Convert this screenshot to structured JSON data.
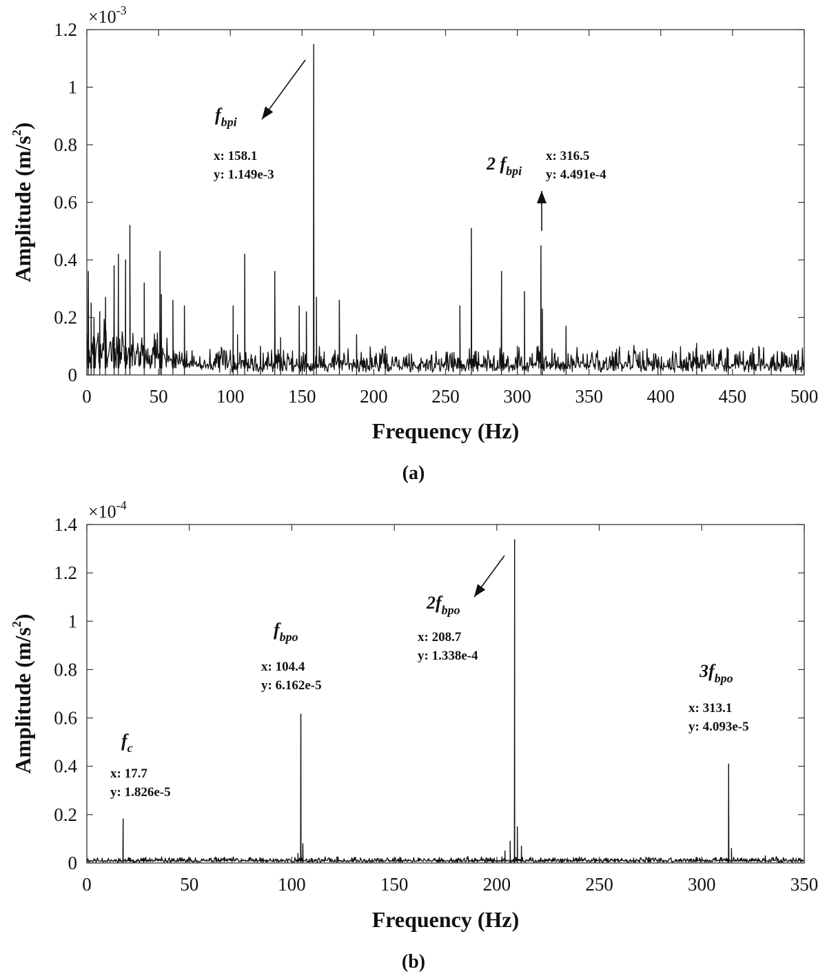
{
  "chart_data": [
    {
      "panel": "(a)",
      "type": "line",
      "xlabel": "Frequency (Hz)",
      "ylabel": "Amplitude (m/s^2)",
      "ylabel_parts": {
        "main": "Amplitude (m/s",
        "sup": "2",
        "close": ")"
      },
      "y_multiplier": {
        "base": "×10",
        "exp": "-3"
      },
      "xlim": [
        0,
        500
      ],
      "ylim": [
        0,
        1.2
      ],
      "xticks": [
        0,
        50,
        100,
        150,
        200,
        250,
        300,
        350,
        400,
        450,
        500
      ],
      "yticks": [
        0,
        0.2,
        0.4,
        0.6,
        0.8,
        1,
        1.2
      ],
      "ytick_labels": [
        "0",
        "0.2",
        "0.4",
        "0.6",
        "0.8",
        "1",
        "1.2"
      ],
      "line_color": "#111111",
      "grid": false,
      "noise": {
        "base": 0.03,
        "spread": 0.035,
        "low_freq_boost": 0.12,
        "low_freq_cutoff": 70,
        "n": 1200
      },
      "peaks": [
        {
          "x": 1,
          "y": 0.36
        },
        {
          "x": 3,
          "y": 0.25
        },
        {
          "x": 5,
          "y": 0.2
        },
        {
          "x": 9,
          "y": 0.22
        },
        {
          "x": 13,
          "y": 0.27
        },
        {
          "x": 19,
          "y": 0.38
        },
        {
          "x": 22,
          "y": 0.42
        },
        {
          "x": 27,
          "y": 0.4
        },
        {
          "x": 30,
          "y": 0.52
        },
        {
          "x": 40,
          "y": 0.32
        },
        {
          "x": 51,
          "y": 0.43
        },
        {
          "x": 52,
          "y": 0.28
        },
        {
          "x": 60,
          "y": 0.26
        },
        {
          "x": 68,
          "y": 0.24
        },
        {
          "x": 102,
          "y": 0.24
        },
        {
          "x": 105,
          "y": 0.14
        },
        {
          "x": 110,
          "y": 0.42
        },
        {
          "x": 121,
          "y": 0.1
        },
        {
          "x": 131,
          "y": 0.36
        },
        {
          "x": 135,
          "y": 0.13
        },
        {
          "x": 148,
          "y": 0.24
        },
        {
          "x": 153,
          "y": 0.22
        },
        {
          "x": 158.1,
          "y": 1.149
        },
        {
          "x": 160,
          "y": 0.27
        },
        {
          "x": 176,
          "y": 0.26
        },
        {
          "x": 188,
          "y": 0.14
        },
        {
          "x": 208,
          "y": 0.1
        },
        {
          "x": 260,
          "y": 0.24
        },
        {
          "x": 268,
          "y": 0.51
        },
        {
          "x": 289,
          "y": 0.36
        },
        {
          "x": 300,
          "y": 0.1
        },
        {
          "x": 305,
          "y": 0.29
        },
        {
          "x": 316.5,
          "y": 0.4491
        },
        {
          "x": 317.5,
          "y": 0.23
        },
        {
          "x": 334,
          "y": 0.17
        },
        {
          "x": 398,
          "y": 0.04
        },
        {
          "x": 425,
          "y": 0.11
        },
        {
          "x": 447,
          "y": 0.09
        },
        {
          "x": 465,
          "y": 0.06
        },
        {
          "x": 477,
          "y": 0.06
        },
        {
          "x": 494,
          "y": 0.07
        }
      ],
      "annotations": [
        {
          "symbol": "f",
          "subscript": "bpi",
          "prefix": "",
          "x_text": "x: 158.1",
          "y_text": "y: 1.149e-3"
        },
        {
          "symbol": "f",
          "subscript": "bpi",
          "prefix": "2 ",
          "x_text": "x: 316.5",
          "y_text": "y: 4.491e-4"
        }
      ]
    },
    {
      "panel": "(b)",
      "type": "line",
      "xlabel": "Frequency (Hz)",
      "ylabel": "Amplitude (m/s^2)",
      "ylabel_parts": {
        "main": "Amplitude (m/s",
        "sup": "2",
        "close": ")"
      },
      "y_multiplier": {
        "base": "×10",
        "exp": "-4"
      },
      "xlim": [
        0,
        350
      ],
      "ylim": [
        0,
        1.4
      ],
      "xticks": [
        0,
        50,
        100,
        150,
        200,
        250,
        300,
        350
      ],
      "yticks": [
        0,
        0.2,
        0.4,
        0.6,
        0.8,
        1,
        1.2,
        1.4
      ],
      "ytick_labels": [
        "0",
        "0.2",
        "0.4",
        "0.6",
        "0.8",
        "1",
        "1.2",
        "1.4"
      ],
      "line_color": "#111111",
      "grid": false,
      "noise": {
        "base": 0.008,
        "spread": 0.008,
        "low_freq_boost": 0,
        "low_freq_cutoff": 0,
        "n": 1400
      },
      "peaks": [
        {
          "x": 17.7,
          "y": 0.1826
        },
        {
          "x": 86,
          "y": 0.02
        },
        {
          "x": 103,
          "y": 0.04
        },
        {
          "x": 104.4,
          "y": 0.6162
        },
        {
          "x": 105.4,
          "y": 0.08
        },
        {
          "x": 122,
          "y": 0.025
        },
        {
          "x": 204,
          "y": 0.05
        },
        {
          "x": 206.5,
          "y": 0.09
        },
        {
          "x": 208.7,
          "y": 1.338
        },
        {
          "x": 210,
          "y": 0.15
        },
        {
          "x": 212,
          "y": 0.07
        },
        {
          "x": 313.1,
          "y": 0.4093
        },
        {
          "x": 314.5,
          "y": 0.06
        },
        {
          "x": 331,
          "y": 0.03
        }
      ],
      "annotations": [
        {
          "symbol": "f",
          "subscript": "c",
          "prefix": "",
          "x_text": "x: 17.7",
          "y_text": "y: 1.826e-5"
        },
        {
          "symbol": "f",
          "subscript": "bpo",
          "prefix": "",
          "x_text": "x: 104.4",
          "y_text": "y: 6.162e-5"
        },
        {
          "symbol": "f",
          "subscript": "bpo",
          "prefix": "2",
          "x_text": "x: 208.7",
          "y_text": "y: 1.338e-4"
        },
        {
          "symbol": "f",
          "subscript": "bpo",
          "prefix": "3",
          "x_text": "x: 313.1",
          "y_text": "y: 4.093e-5"
        }
      ]
    }
  ]
}
